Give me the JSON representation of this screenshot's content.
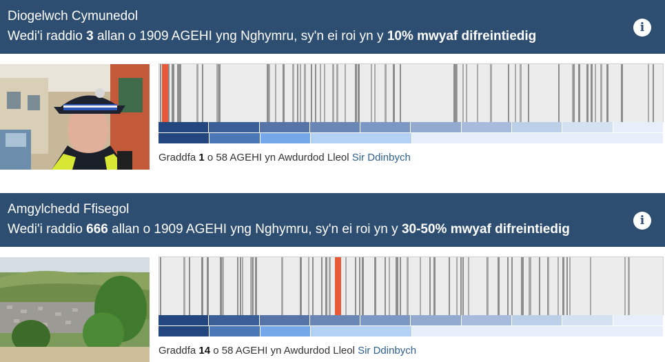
{
  "colors": {
    "header_bg": "#2d4d71",
    "highlight_bar": "#e8593a",
    "decile_colors": [
      "#23467f",
      "#3a5f97",
      "#5574a8",
      "#6a86b5",
      "#7b97c4",
      "#92a9d0",
      "#a7bbdc",
      "#bccfe8",
      "#d3e1f3",
      "#e6eef9"
    ],
    "quintile_colors": [
      "#23467f",
      "#4b77b7",
      "#74a8e8",
      "#b3d1f5",
      "#e6eef9"
    ]
  },
  "sections": [
    {
      "title": "Diogelwch Cymunedol",
      "subtitle_pre": "Wedi'i raddio ",
      "rank": "3",
      "subtitle_mid": " allan o 1909 AGEHI yng Nghymru, sy'n ei roi yn y ",
      "deprivation_band": "10% mwyaf difreintiedig",
      "info_icon": "i",
      "image_alt": "Swyddog heddlu cymunedol",
      "caption_pre": "Graddfa ",
      "caption_rank": "1",
      "caption_mid": " o 58 AGEHI yn Awdurdod Lleol ",
      "local_authority": "Sir Ddinbych",
      "highlight_position": 0.005
    },
    {
      "title": "Amgylchedd Ffisegol",
      "subtitle_pre": "Wedi'i raddio ",
      "rank": "666",
      "subtitle_mid": " allan o 1909 AGEHI yng Nghymru, sy'n ei roi yn y ",
      "deprivation_band": "30-50% mwyaf difreintiedig",
      "info_icon": "i",
      "image_alt": "Golygfa o fryniau a thref",
      "caption_pre": "Graddfa ",
      "caption_rank": "14",
      "caption_mid": " o 58 AGEHI yn Awdurdod Lleol ",
      "local_authority": "Sir Ddinbych",
      "highlight_position": 0.349
    }
  ]
}
